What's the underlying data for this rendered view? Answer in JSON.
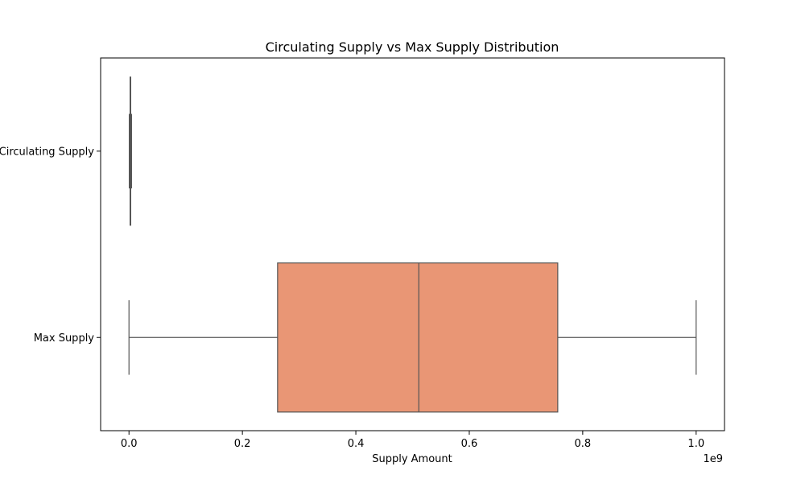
{
  "chart_data": {
    "type": "box",
    "orientation": "horizontal",
    "title": "Circulating Supply vs Max Supply Distribution",
    "xlabel": "Supply Amount",
    "ylabel": "",
    "x_offset_label": "1e9",
    "xlim": [
      -0.05,
      1.05
    ],
    "x_ticks": [
      0.0,
      0.2,
      0.4,
      0.6,
      0.8,
      1.0
    ],
    "x_tick_labels": [
      "0.0",
      "0.2",
      "0.4",
      "0.6",
      "0.8",
      "1.0"
    ],
    "grid": false,
    "legend": "none",
    "categories": [
      "Circulating Supply",
      "Max Supply"
    ],
    "series": [
      {
        "category": "Circulating Supply",
        "whisker_low": 0.0005,
        "q1": 0.0015,
        "median": 0.0025,
        "q3": 0.0035,
        "whisker_high": 0.0045,
        "color": "#66c2a5"
      },
      {
        "category": "Max Supply",
        "whisker_low": 0.0,
        "q1": 0.262,
        "median": 0.511,
        "q3": 0.756,
        "whisker_high": 1.0,
        "color": "#e99675"
      }
    ],
    "edge_color": "#555555"
  }
}
